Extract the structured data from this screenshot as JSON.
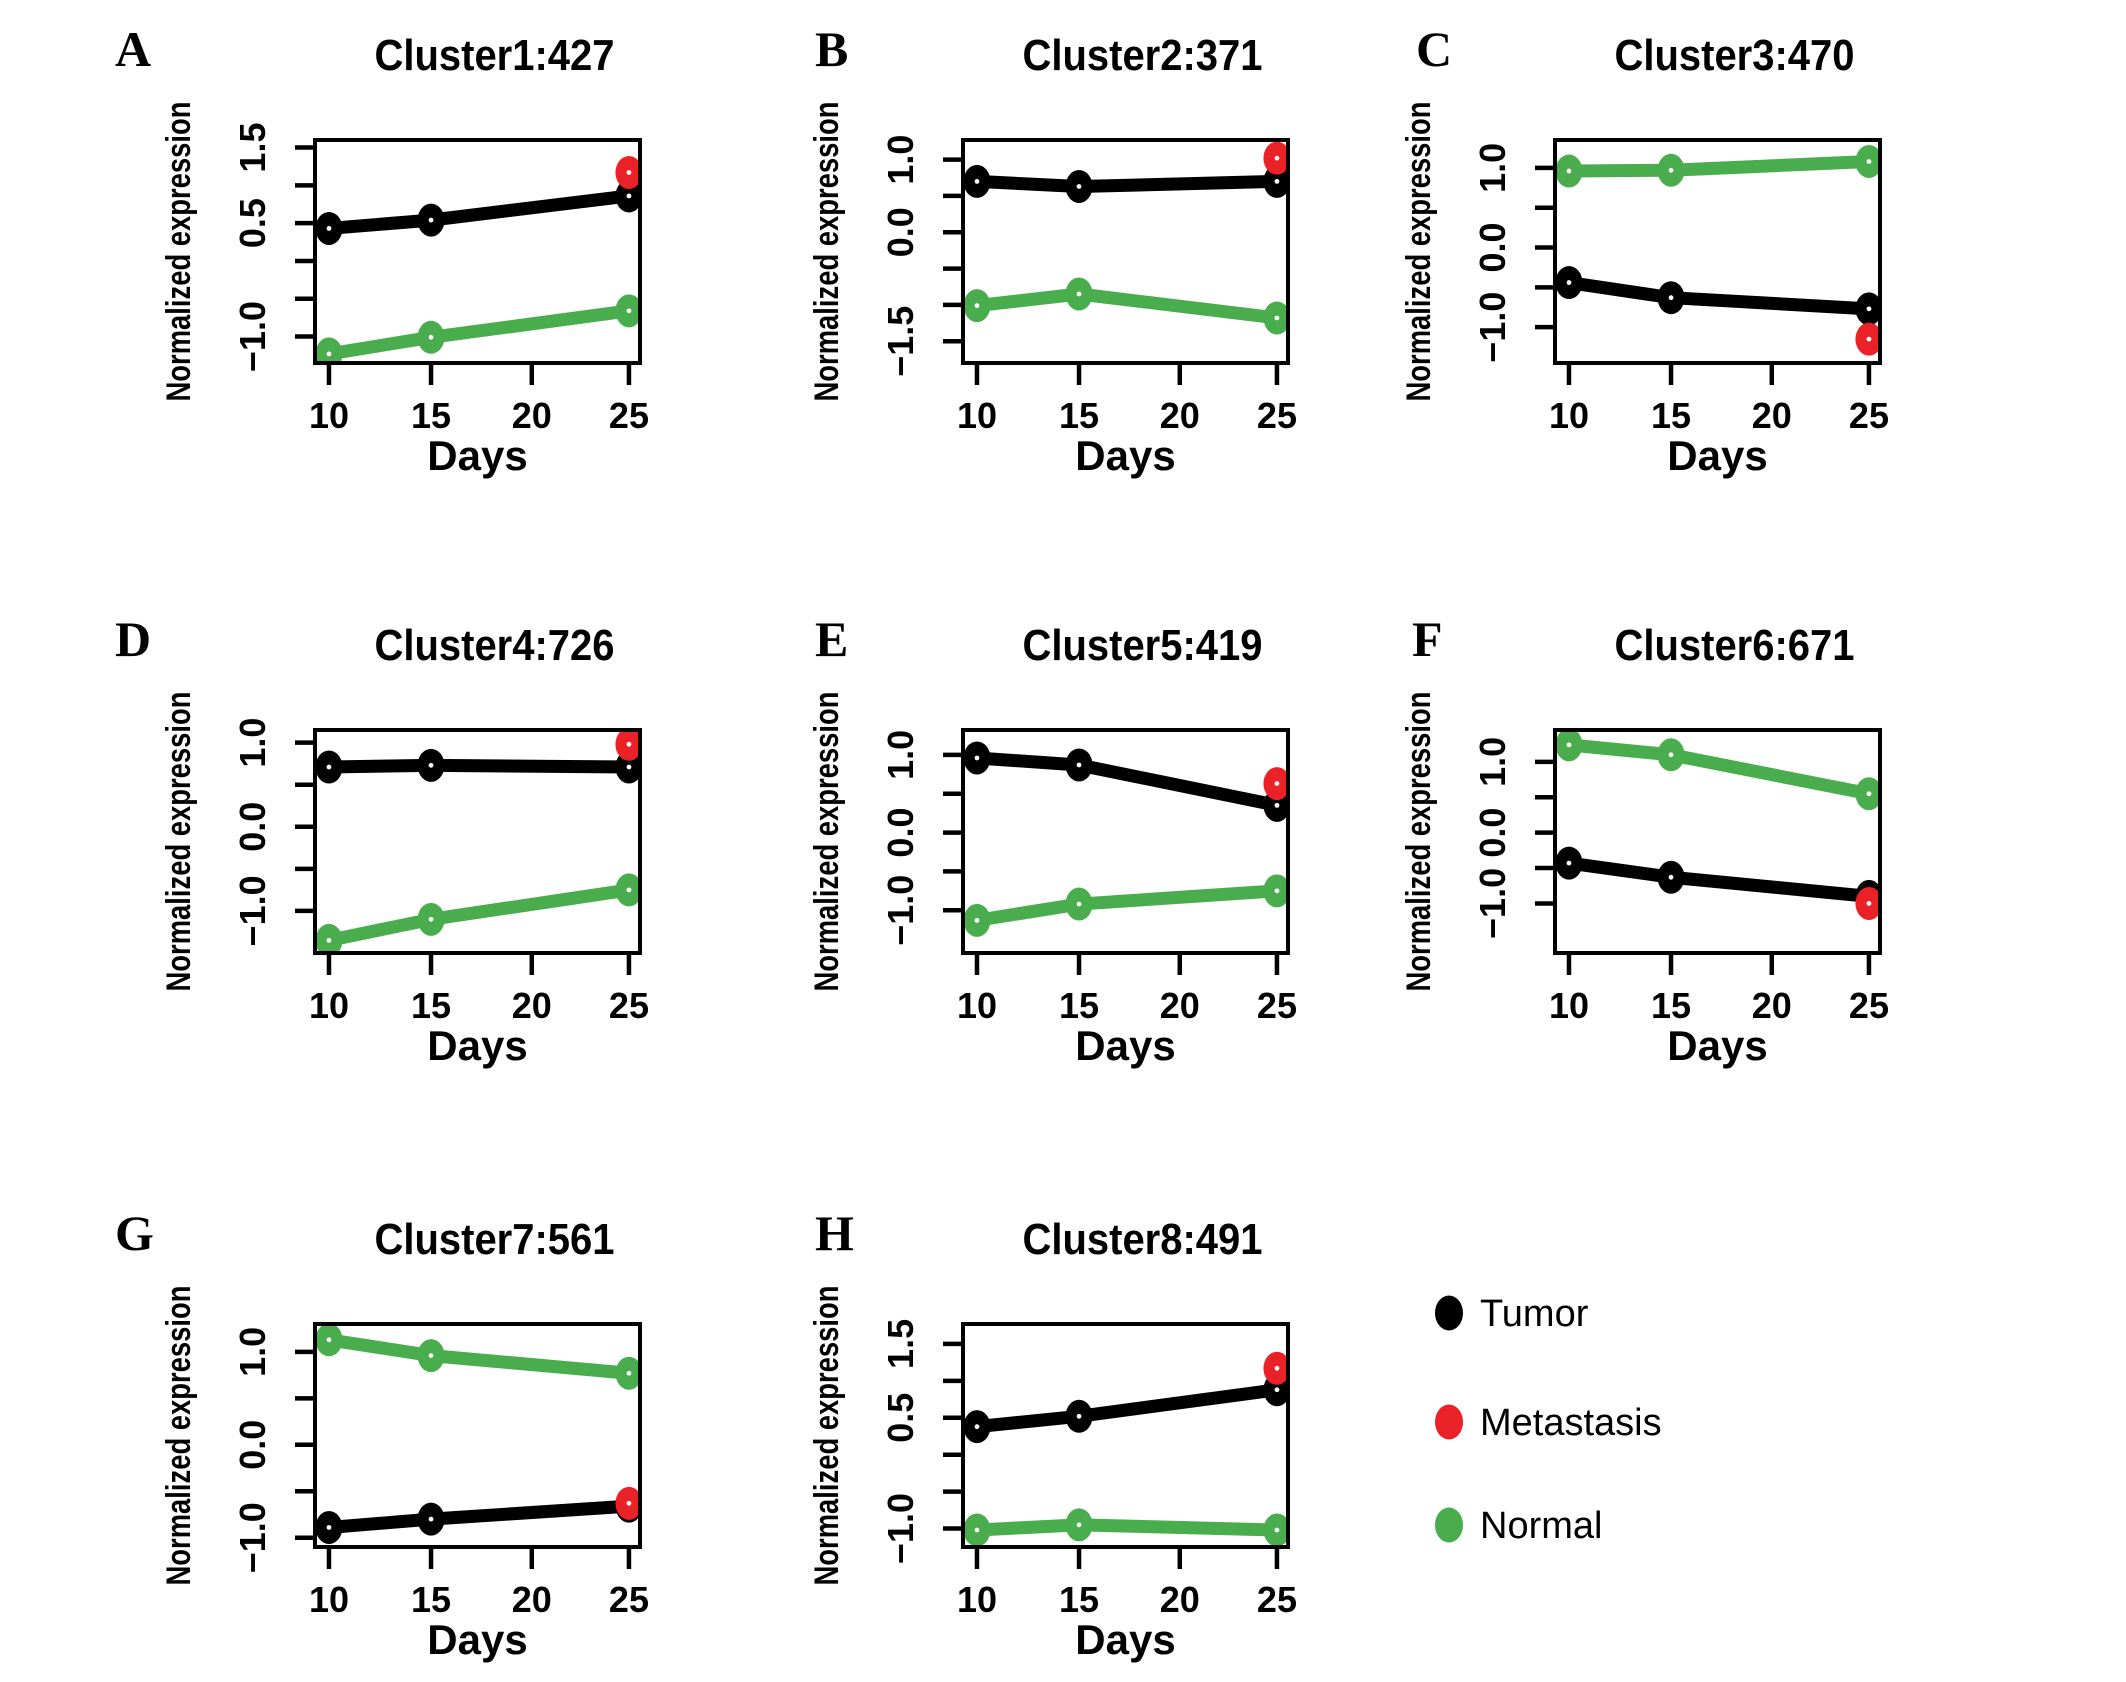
{
  "figure": {
    "colors": {
      "tumor": "#000000",
      "metastasis": "#ea2127",
      "normal": "#4aad4d",
      "axis": "#000000",
      "background": "#ffffff"
    },
    "legend": {
      "position": "bottom-right-cell",
      "items": [
        {
          "label": "Tumor",
          "color_key": "tumor"
        },
        {
          "label": "Metastasis",
          "color_key": "metastasis"
        },
        {
          "label": "Normal",
          "color_key": "normal"
        }
      ]
    }
  },
  "chart_data": [
    {
      "type": "line",
      "panel": "A",
      "title": "Cluster1:427",
      "xlabel": "Days",
      "ylabel": "Normalized expression",
      "x": [
        10,
        15,
        25
      ],
      "xticks": [
        10,
        15,
        20,
        25
      ],
      "xlim": [
        9.4,
        25.6
      ],
      "yticks": [
        1.5,
        1.0,
        0.5,
        0.0,
        -0.5,
        -1.0
      ],
      "ytick_labels": [
        "1.5",
        "",
        "0.5",
        "",
        "",
        "−1.0"
      ],
      "ylim": [
        -1.35,
        1.6
      ],
      "series": [
        {
          "name": "Tumor",
          "color_key": "tumor",
          "x": [
            10,
            15,
            25
          ],
          "values": [
            0.43,
            0.54,
            0.86
          ]
        },
        {
          "name": "Normal",
          "color_key": "normal",
          "x": [
            10,
            15,
            25
          ],
          "values": [
            -1.23,
            -1.01,
            -0.66
          ]
        },
        {
          "name": "Metastasis",
          "color_key": "metastasis",
          "x": [
            25
          ],
          "values": [
            1.17
          ]
        }
      ]
    },
    {
      "type": "line",
      "panel": "B",
      "title": "Cluster2:371",
      "xlabel": "Days",
      "ylabel": "Normalized expression",
      "x": [
        10,
        15,
        25
      ],
      "xticks": [
        10,
        15,
        20,
        25
      ],
      "xlim": [
        9.4,
        25.6
      ],
      "yticks": [
        1.0,
        0.5,
        0.0,
        -0.5,
        -1.0,
        -1.5
      ],
      "ytick_labels": [
        "1.0",
        "",
        "0.0",
        "",
        "",
        "−1.5"
      ],
      "ylim": [
        -1.8,
        1.27
      ],
      "series": [
        {
          "name": "Tumor",
          "color_key": "tumor",
          "x": [
            10,
            15,
            25
          ],
          "values": [
            0.7,
            0.63,
            0.7
          ]
        },
        {
          "name": "Normal",
          "color_key": "normal",
          "x": [
            10,
            15,
            25
          ],
          "values": [
            -1.01,
            -0.85,
            -1.18
          ]
        },
        {
          "name": "Metastasis",
          "color_key": "metastasis",
          "x": [
            25
          ],
          "values": [
            1.02
          ]
        }
      ]
    },
    {
      "type": "line",
      "panel": "C",
      "title": "Cluster3:470",
      "xlabel": "Days",
      "ylabel": "Normalized expression",
      "x": [
        10,
        15,
        25
      ],
      "xticks": [
        10,
        15,
        20,
        25
      ],
      "xlim": [
        9.4,
        25.6
      ],
      "yticks": [
        1.0,
        0.5,
        0.0,
        -0.5,
        -1.0
      ],
      "ytick_labels": [
        "1.0",
        "",
        "0.0",
        "",
        "−1.0"
      ],
      "ylim": [
        -1.45,
        1.35
      ],
      "series": [
        {
          "name": "Tumor",
          "color_key": "tumor",
          "x": [
            10,
            15,
            25
          ],
          "values": [
            -0.44,
            -0.63,
            -0.77
          ]
        },
        {
          "name": "Normal",
          "color_key": "normal",
          "x": [
            10,
            15,
            25
          ],
          "values": [
            0.96,
            0.97,
            1.08
          ]
        },
        {
          "name": "Metastasis",
          "color_key": "metastasis",
          "x": [
            25
          ],
          "values": [
            -1.15
          ]
        }
      ]
    },
    {
      "type": "line",
      "panel": "D",
      "title": "Cluster4:726",
      "xlabel": "Days",
      "ylabel": "Normalized expression",
      "x": [
        10,
        15,
        25
      ],
      "xticks": [
        10,
        15,
        20,
        25
      ],
      "xlim": [
        9.4,
        25.6
      ],
      "yticks": [
        1.0,
        0.5,
        0.0,
        -0.5,
        -1.0
      ],
      "ytick_labels": [
        "1.0",
        "",
        "0.0",
        "",
        "−1.0"
      ],
      "ylim": [
        -1.5,
        1.15
      ],
      "series": [
        {
          "name": "Tumor",
          "color_key": "tumor",
          "x": [
            10,
            15,
            25
          ],
          "values": [
            0.71,
            0.73,
            0.71
          ]
        },
        {
          "name": "Normal",
          "color_key": "normal",
          "x": [
            10,
            15,
            25
          ],
          "values": [
            -1.35,
            -1.1,
            -0.75
          ]
        },
        {
          "name": "Metastasis",
          "color_key": "metastasis",
          "x": [
            25
          ],
          "values": [
            0.98
          ]
        }
      ]
    },
    {
      "type": "line",
      "panel": "E",
      "title": "Cluster5:419",
      "xlabel": "Days",
      "ylabel": "Normalized expression",
      "x": [
        10,
        15,
        25
      ],
      "xticks": [
        10,
        15,
        20,
        25
      ],
      "xlim": [
        9.4,
        25.6
      ],
      "yticks": [
        1.0,
        0.5,
        0.0,
        -0.5,
        -1.0
      ],
      "ytick_labels": [
        "1.0",
        "",
        "0.0",
        "",
        "−1.0"
      ],
      "ylim": [
        -1.55,
        1.32
      ],
      "series": [
        {
          "name": "Tumor",
          "color_key": "tumor",
          "x": [
            10,
            15,
            25
          ],
          "values": [
            0.96,
            0.87,
            0.35
          ]
        },
        {
          "name": "Normal",
          "color_key": "normal",
          "x": [
            10,
            15,
            25
          ],
          "values": [
            -1.13,
            -0.92,
            -0.75
          ]
        },
        {
          "name": "Metastasis",
          "color_key": "metastasis",
          "x": [
            25
          ],
          "values": [
            0.63
          ]
        }
      ]
    },
    {
      "type": "line",
      "panel": "F",
      "title": "Cluster6:671",
      "xlabel": "Days",
      "ylabel": "Normalized expression",
      "x": [
        10,
        15,
        25
      ],
      "xticks": [
        10,
        15,
        20,
        25
      ],
      "xlim": [
        9.4,
        25.6
      ],
      "yticks": [
        1.0,
        0.5,
        0.0,
        -0.5,
        -1.0
      ],
      "ytick_labels": [
        "1.0",
        "",
        "0.0",
        "",
        "−1.0"
      ],
      "ylim": [
        -1.7,
        1.45
      ],
      "series": [
        {
          "name": "Tumor",
          "color_key": "tumor",
          "x": [
            10,
            15,
            25
          ],
          "values": [
            -0.43,
            -0.63,
            -0.9
          ]
        },
        {
          "name": "Normal",
          "color_key": "normal",
          "x": [
            10,
            15,
            25
          ],
          "values": [
            1.24,
            1.1,
            0.55
          ]
        },
        {
          "name": "Metastasis",
          "color_key": "metastasis",
          "x": [
            25
          ],
          "values": [
            -1.0
          ]
        }
      ]
    },
    {
      "type": "line",
      "panel": "G",
      "title": "Cluster7:561",
      "xlabel": "Days",
      "ylabel": "Normalized expression",
      "x": [
        10,
        15,
        25
      ],
      "xticks": [
        10,
        15,
        20,
        25
      ],
      "xlim": [
        9.4,
        25.6
      ],
      "yticks": [
        1.0,
        0.5,
        0.0,
        -0.5,
        -1.0
      ],
      "ytick_labels": [
        "1.0",
        "",
        "0.0",
        "",
        "−1.0"
      ],
      "ylim": [
        -1.1,
        1.3
      ],
      "series": [
        {
          "name": "Tumor",
          "color_key": "tumor",
          "x": [
            10,
            15,
            25
          ],
          "values": [
            -0.89,
            -0.8,
            -0.66
          ]
        },
        {
          "name": "Normal",
          "color_key": "normal",
          "x": [
            10,
            15,
            25
          ],
          "values": [
            1.13,
            0.96,
            0.77
          ]
        },
        {
          "name": "Metastasis",
          "color_key": "metastasis",
          "x": [
            25
          ],
          "values": [
            -0.63
          ]
        }
      ]
    },
    {
      "type": "line",
      "panel": "H",
      "title": "Cluster8:491",
      "xlabel": "Days",
      "ylabel": "Normalized expression",
      "x": [
        10,
        15,
        25
      ],
      "xticks": [
        10,
        15,
        20,
        25
      ],
      "xlim": [
        9.4,
        25.6
      ],
      "yticks": [
        1.5,
        1.0,
        0.5,
        0.0,
        -0.5,
        -1.0
      ],
      "ytick_labels": [
        "1.5",
        "",
        "0.5",
        "",
        "",
        "−1.0"
      ],
      "ylim": [
        -1.25,
        1.77
      ],
      "series": [
        {
          "name": "Tumor",
          "color_key": "tumor",
          "x": [
            10,
            15,
            25
          ],
          "values": [
            0.38,
            0.52,
            0.88
          ]
        },
        {
          "name": "Normal",
          "color_key": "normal",
          "x": [
            10,
            15,
            25
          ],
          "values": [
            -1.02,
            -0.95,
            -1.02
          ]
        },
        {
          "name": "Metastasis",
          "color_key": "metastasis",
          "x": [
            25
          ],
          "values": [
            1.17
          ]
        }
      ]
    }
  ]
}
